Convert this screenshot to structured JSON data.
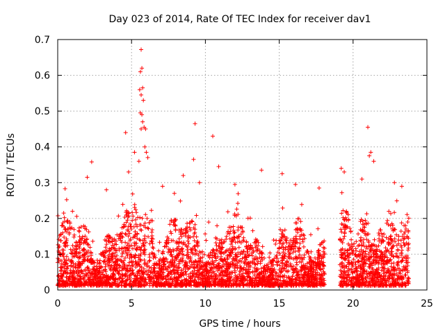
{
  "chart_data": {
    "type": "scatter",
    "title": "Day 023 of 2014, Rate Of TEC Index for receiver dav1",
    "xlabel": "GPS time / hours",
    "ylabel": "ROTI / TECUs",
    "xlim": [
      0,
      25
    ],
    "ylim": [
      0,
      0.7
    ],
    "x_ticks": [
      0,
      5,
      10,
      15,
      20,
      25
    ],
    "y_ticks": [
      0,
      0.1,
      0.2,
      0.3,
      0.4,
      0.5,
      0.6,
      0.7
    ],
    "x_tick_labels": [
      "0",
      "5",
      "10",
      "15",
      "20",
      "25"
    ],
    "y_tick_labels": [
      "0",
      "0.1",
      "0.2",
      "0.3",
      "0.4",
      "0.5",
      "0.6",
      "0.7"
    ],
    "grid": true,
    "marker": "plus",
    "color": "#ff0000",
    "data_gaps_hours": [
      [
        18.1,
        19.1
      ]
    ],
    "series": [
      {
        "name": "ROTI",
        "outliers": [
          [
            5.65,
            0.672
          ],
          [
            5.7,
            0.62
          ],
          [
            5.6,
            0.61
          ],
          [
            5.75,
            0.565
          ],
          [
            5.55,
            0.56
          ],
          [
            5.65,
            0.545
          ],
          [
            5.8,
            0.53
          ],
          [
            5.6,
            0.495
          ],
          [
            5.7,
            0.49
          ],
          [
            5.75,
            0.47
          ],
          [
            5.85,
            0.455
          ],
          [
            5.95,
            0.45
          ],
          [
            5.65,
            0.45
          ],
          [
            4.6,
            0.44
          ],
          [
            9.3,
            0.465
          ],
          [
            10.5,
            0.43
          ],
          [
            21.0,
            0.455
          ],
          [
            5.9,
            0.4
          ],
          [
            6.0,
            0.385
          ],
          [
            5.2,
            0.385
          ],
          [
            9.2,
            0.365
          ],
          [
            6.1,
            0.37
          ],
          [
            5.5,
            0.36
          ],
          [
            2.3,
            0.358
          ],
          [
            10.9,
            0.345
          ],
          [
            19.2,
            0.34
          ],
          [
            19.4,
            0.33
          ],
          [
            21.2,
            0.385
          ],
          [
            21.1,
            0.375
          ],
          [
            21.4,
            0.36
          ],
          [
            13.8,
            0.335
          ],
          [
            15.2,
            0.325
          ],
          [
            8.5,
            0.32
          ],
          [
            4.8,
            0.33
          ],
          [
            2.0,
            0.315
          ],
          [
            0.5,
            0.283
          ],
          [
            1.0,
            0.22
          ],
          [
            3.3,
            0.28
          ],
          [
            7.1,
            0.29
          ],
          [
            7.9,
            0.27
          ],
          [
            9.6,
            0.3
          ],
          [
            12.0,
            0.295
          ],
          [
            16.1,
            0.295
          ],
          [
            17.7,
            0.285
          ],
          [
            20.6,
            0.31
          ],
          [
            22.8,
            0.3
          ],
          [
            23.3,
            0.29
          ],
          [
            23.7,
            0.19
          ]
        ]
      }
    ]
  }
}
